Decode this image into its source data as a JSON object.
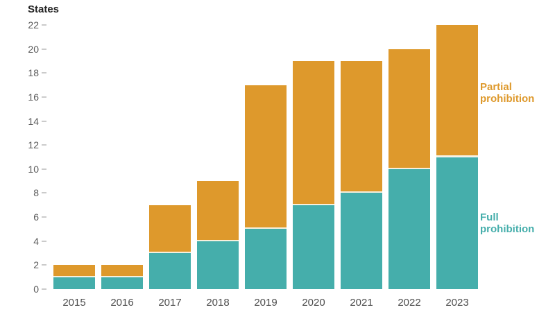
{
  "chart_data": {
    "type": "bar",
    "stacked": true,
    "title": "",
    "ylabel": "States",
    "xlabel": "",
    "categories": [
      "2015",
      "2016",
      "2017",
      "2018",
      "2019",
      "2020",
      "2021",
      "2022",
      "2023"
    ],
    "series": [
      {
        "name": "Full prohibition",
        "color": "#45AEAB",
        "values": [
          1,
          1,
          3,
          4,
          5,
          7,
          8,
          10,
          11
        ]
      },
      {
        "name": "Partial prohibition",
        "color": "#DE992C",
        "values": [
          1,
          1,
          4,
          5,
          12,
          12,
          11,
          10,
          11
        ]
      }
    ],
    "totals": [
      2,
      2,
      7,
      9,
      17,
      19,
      19,
      20,
      22
    ],
    "ylim": [
      0,
      22
    ],
    "yticks": [
      0,
      2,
      4,
      6,
      8,
      10,
      12,
      14,
      16,
      18,
      20,
      22
    ],
    "grid": false,
    "legend_position": "right-annotations",
    "separator_color": "#f6f0dd",
    "background_color": "#ffffff"
  }
}
